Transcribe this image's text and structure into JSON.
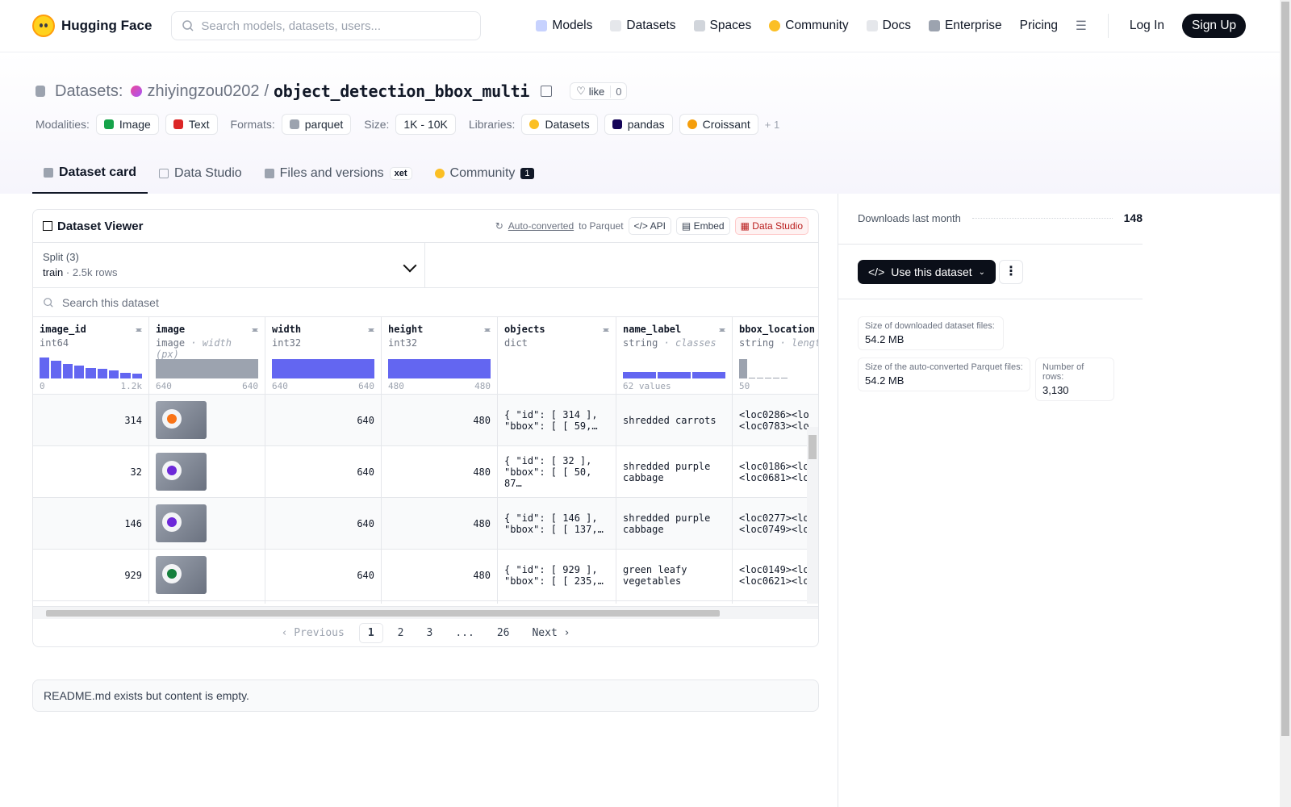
{
  "nav": {
    "brand": "Hugging Face",
    "search_placeholder": "Search models, datasets, users...",
    "links": [
      "Models",
      "Datasets",
      "Spaces",
      "Community",
      "Docs",
      "Enterprise",
      "Pricing"
    ],
    "login": "Log In",
    "signup": "Sign Up"
  },
  "header": {
    "section": "Datasets:",
    "owner": "zhiyingzou0202",
    "slash": "/",
    "repo": "object_detection_bbox_multi",
    "like_label": "like",
    "like_count": "0",
    "modalities_label": "Modalities:",
    "modalities": [
      "Image",
      "Text"
    ],
    "formats_label": "Formats:",
    "format": "parquet",
    "size_label": "Size:",
    "size": "1K - 10K",
    "libraries_label": "Libraries:",
    "libraries": [
      "Datasets",
      "pandas",
      "Croissant"
    ],
    "more_libs": "+ 1"
  },
  "tabs": [
    {
      "label": "Dataset card"
    },
    {
      "label": "Data Studio"
    },
    {
      "label": "Files and versions",
      "badge": "xet"
    },
    {
      "label": "Community",
      "badge": "1"
    }
  ],
  "viewer": {
    "title": "Dataset Viewer",
    "auto_converted": "Auto-converted",
    "to_parquet": "to Parquet",
    "api": "API",
    "embed": "Embed",
    "data_studio": "Data Studio",
    "split_label": "Split (3)",
    "split_name": "train",
    "split_dot": "·",
    "split_rows": "2.5k rows",
    "search_placeholder": "Search this dataset",
    "columns": [
      {
        "name": "image_id",
        "type": "int64",
        "min": "0",
        "max": "1.2k"
      },
      {
        "name": "image",
        "type": "image",
        "type_extra": "· width (px)",
        "min": "640",
        "max": "640"
      },
      {
        "name": "width",
        "type": "int32",
        "min": "640",
        "max": "640"
      },
      {
        "name": "height",
        "type": "int32",
        "min": "480",
        "max": "480"
      },
      {
        "name": "objects",
        "type": "dict"
      },
      {
        "name": "name_label",
        "type": "string",
        "type_extra": "· classes",
        "min": "62 values"
      },
      {
        "name": "bbox_location",
        "type": "string",
        "type_extra": "· lengths",
        "min": "50"
      }
    ],
    "rows": [
      {
        "image_id": "314",
        "width": "640",
        "height": "480",
        "objects_1": "{ \"id\": [ 314 ],",
        "objects_2": "\"bbox\": [ [ 59,…",
        "name_label_1": "shredded carrots",
        "name_label_2": "",
        "bbox_1": "<loc0286><lo",
        "bbox_2": "<loc0783><lo",
        "food": "#f97316"
      },
      {
        "image_id": "32",
        "width": "640",
        "height": "480",
        "objects_1": "{ \"id\": [ 32 ],",
        "objects_2": "\"bbox\": [ [ 50, 87…",
        "name_label_1": "shredded purple",
        "name_label_2": "cabbage",
        "bbox_1": "<loc0186><lo",
        "bbox_2": "<loc0681><lo",
        "food": "#6d28d9"
      },
      {
        "image_id": "146",
        "width": "640",
        "height": "480",
        "objects_1": "{ \"id\": [ 146 ],",
        "objects_2": "\"bbox\": [ [ 137,…",
        "name_label_1": "shredded purple",
        "name_label_2": "cabbage",
        "bbox_1": "<loc0277><lo",
        "bbox_2": "<loc0749><lo",
        "food": "#6d28d9"
      },
      {
        "image_id": "929",
        "width": "640",
        "height": "480",
        "objects_1": "{ \"id\": [ 929 ],",
        "objects_2": "\"bbox\": [ [ 235,…",
        "name_label_1": "green leafy",
        "name_label_2": "vegetables",
        "bbox_1": "<loc0149><lo",
        "bbox_2": "<loc0621><lo",
        "food": "#15803d"
      }
    ],
    "pager": {
      "prev": "Previous",
      "pages": [
        "1",
        "2",
        "3",
        "...",
        "26"
      ],
      "next": "Next"
    }
  },
  "readme": "README.md exists but content is empty.",
  "sidebar": {
    "downloads_label": "Downloads last month",
    "downloads": "148",
    "use_button": "Use this dataset",
    "more": "⋮",
    "stats": [
      {
        "label": "Size of downloaded dataset files:",
        "value": "54.2 MB"
      },
      {
        "label": "Size of the auto-converted Parquet files:",
        "value": "54.2 MB"
      },
      {
        "label": "Number of rows:",
        "value": "3,130"
      }
    ]
  },
  "colors": {
    "accent": "#6366f1",
    "dark": "#0b0f19"
  }
}
